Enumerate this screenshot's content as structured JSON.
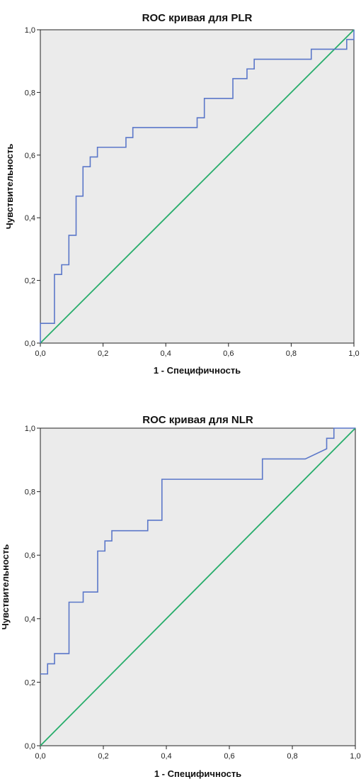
{
  "chart_data": [
    {
      "type": "line",
      "title": "ROC кривая для PLR",
      "xlabel": "1 - Специфичность",
      "ylabel": "Чувствительность",
      "xlim": [
        0,
        1
      ],
      "ylim": [
        0,
        1
      ],
      "xticks": [
        "0,0",
        "0,2",
        "0,4",
        "0,6",
        "0,8",
        "1,0"
      ],
      "yticks": [
        "0,0",
        "0,2",
        "0,4",
        "0,6",
        "0,8",
        "1,0"
      ],
      "grid": false,
      "series": [
        {
          "color": "#5b77c9",
          "points": [
            [
              0.0,
              0.0
            ],
            [
              0.0,
              0.063
            ],
            [
              0.045,
              0.063
            ],
            [
              0.045,
              0.219
            ],
            [
              0.068,
              0.219
            ],
            [
              0.068,
              0.25
            ],
            [
              0.091,
              0.25
            ],
            [
              0.091,
              0.344
            ],
            [
              0.114,
              0.344
            ],
            [
              0.114,
              0.469
            ],
            [
              0.136,
              0.469
            ],
            [
              0.136,
              0.563
            ],
            [
              0.159,
              0.563
            ],
            [
              0.159,
              0.594
            ],
            [
              0.182,
              0.594
            ],
            [
              0.182,
              0.625
            ],
            [
              0.273,
              0.625
            ],
            [
              0.273,
              0.656
            ],
            [
              0.295,
              0.656
            ],
            [
              0.295,
              0.688
            ],
            [
              0.5,
              0.688
            ],
            [
              0.5,
              0.719
            ],
            [
              0.523,
              0.719
            ],
            [
              0.523,
              0.781
            ],
            [
              0.614,
              0.781
            ],
            [
              0.614,
              0.844
            ],
            [
              0.659,
              0.844
            ],
            [
              0.659,
              0.875
            ],
            [
              0.682,
              0.875
            ],
            [
              0.682,
              0.906
            ],
            [
              0.864,
              0.906
            ],
            [
              0.864,
              0.938
            ],
            [
              0.977,
              0.938
            ],
            [
              0.977,
              0.969
            ],
            [
              1.0,
              0.969
            ],
            [
              1.0,
              1.0
            ]
          ]
        },
        {
          "color": "#27ad6b",
          "points": [
            [
              0,
              0
            ],
            [
              1,
              1
            ]
          ]
        }
      ]
    },
    {
      "type": "line",
      "title": "ROC кривая для NLR",
      "xlabel": "1 - Специфичность",
      "ylabel": "Чувствительность",
      "xlim": [
        0,
        1
      ],
      "ylim": [
        0,
        1
      ],
      "xticks": [
        "0,0",
        "0,2",
        "0,4",
        "0,6",
        "0,8",
        "1,0"
      ],
      "yticks": [
        "0,0",
        "0,2",
        "0,4",
        "0,6",
        "0,8",
        "1,0"
      ],
      "grid": false,
      "series": [
        {
          "color": "#5b77c9",
          "points": [
            [
              0.0,
              0.226
            ],
            [
              0.023,
              0.226
            ],
            [
              0.023,
              0.258
            ],
            [
              0.045,
              0.258
            ],
            [
              0.045,
              0.29
            ],
            [
              0.091,
              0.29
            ],
            [
              0.091,
              0.452
            ],
            [
              0.136,
              0.452
            ],
            [
              0.136,
              0.484
            ],
            [
              0.182,
              0.484
            ],
            [
              0.182,
              0.613
            ],
            [
              0.205,
              0.613
            ],
            [
              0.205,
              0.645
            ],
            [
              0.227,
              0.645
            ],
            [
              0.227,
              0.677
            ],
            [
              0.341,
              0.677
            ],
            [
              0.341,
              0.71
            ],
            [
              0.386,
              0.71
            ],
            [
              0.386,
              0.839
            ],
            [
              0.705,
              0.839
            ],
            [
              0.705,
              0.903
            ],
            [
              0.841,
              0.903
            ],
            [
              0.841,
              0.903
            ],
            [
              0.909,
              0.935
            ],
            [
              0.909,
              0.968
            ],
            [
              0.932,
              0.968
            ],
            [
              0.932,
              1.0
            ],
            [
              1.0,
              1.0
            ]
          ]
        },
        {
          "color": "#27ad6b",
          "points": [
            [
              0,
              0
            ],
            [
              1,
              1
            ]
          ]
        }
      ]
    }
  ]
}
